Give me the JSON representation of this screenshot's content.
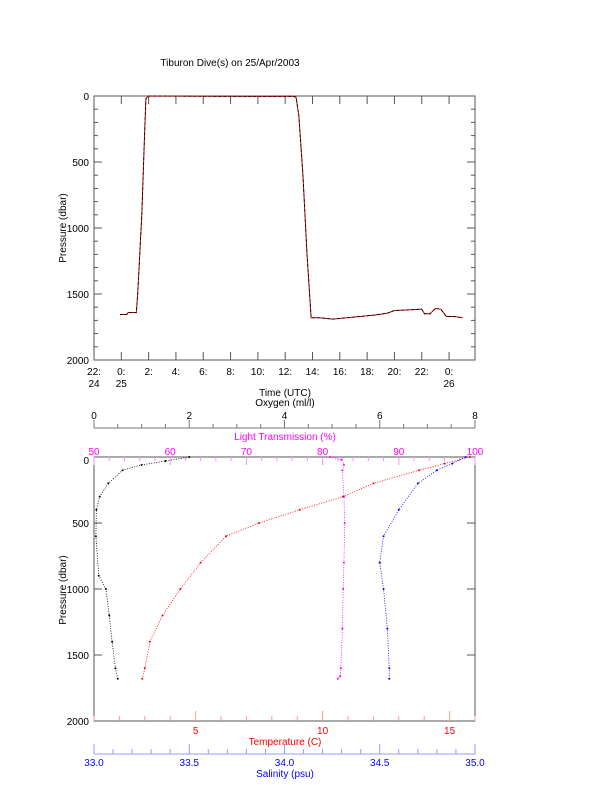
{
  "chart_data": [
    {
      "type": "line",
      "title": "Tiburon Dive(s) on 25/Apr/2003",
      "xlabel": "Time (UTC)",
      "ylabel": "Pressure (dbar)",
      "xlim": [
        -2,
        25.9
      ],
      "ylim": [
        2000,
        0
      ],
      "x_ticks": [
        {
          "v": -2,
          "l1": "22:",
          "l2": "24"
        },
        {
          "v": 0,
          "l1": "0:",
          "l2": "25"
        },
        {
          "v": 2,
          "l1": "2:",
          "l2": ""
        },
        {
          "v": 4,
          "l1": "4:",
          "l2": ""
        },
        {
          "v": 6,
          "l1": "6:",
          "l2": ""
        },
        {
          "v": 8,
          "l1": "8:",
          "l2": ""
        },
        {
          "v": 10,
          "l1": "10:",
          "l2": ""
        },
        {
          "v": 12,
          "l1": "12:",
          "l2": ""
        },
        {
          "v": 14,
          "l1": "14:",
          "l2": ""
        },
        {
          "v": 16,
          "l1": "16:",
          "l2": ""
        },
        {
          "v": 18,
          "l1": "18:",
          "l2": ""
        },
        {
          "v": 20,
          "l1": "20:",
          "l2": ""
        },
        {
          "v": 22,
          "l1": "22:",
          "l2": ""
        },
        {
          "v": 24,
          "l1": "0:",
          "l2": "26"
        }
      ],
      "y_ticks": [
        "0",
        "500",
        "1000",
        "1500",
        "2000"
      ],
      "series": [
        {
          "name": "dive",
          "color": "#000000",
          "x": [
            -0.1,
            0.4,
            0.5,
            1.1,
            1.2,
            1.5,
            1.7,
            1.8,
            2.0,
            6,
            10,
            12.6,
            12.8,
            13.0,
            13.3,
            13.6,
            13.9,
            14.5,
            15.5,
            16.5,
            17.5,
            18.5,
            19.5,
            20,
            21,
            22,
            22.2,
            22.6,
            23,
            23.4,
            23.8,
            24.3,
            25
          ],
          "y": [
            1655,
            1655,
            1640,
            1640,
            1500,
            900,
            300,
            20,
            0,
            2,
            3,
            2,
            10,
            150,
            600,
            1200,
            1680,
            1680,
            1690,
            1680,
            1670,
            1660,
            1645,
            1625,
            1620,
            1615,
            1650,
            1650,
            1610,
            1615,
            1670,
            1670,
            1680
          ]
        }
      ]
    },
    {
      "type": "scatter",
      "ylabel": "Pressure (dbar)",
      "ylim": [
        2000,
        0
      ],
      "y_ticks": [
        "0",
        "500",
        "1000",
        "1500",
        "2000"
      ],
      "axes": [
        {
          "key": "oxygen",
          "label": "Oxygen (ml/l)",
          "color": "#000000",
          "range": [
            0,
            8
          ],
          "ticks": [
            "0",
            "2",
            "4",
            "6",
            "8"
          ],
          "position": "top"
        },
        {
          "key": "light",
          "label": "Light Transmission (%)",
          "color": "#ff00ff",
          "range": [
            50,
            100
          ],
          "ticks": [
            "50",
            "60",
            "70",
            "80",
            "90",
            "100"
          ],
          "position": "top-inner"
        },
        {
          "key": "temp",
          "label": "Temperature (C)",
          "color": "#ff0000",
          "range": [
            1,
            16
          ],
          "ticks": [
            "5",
            "10",
            "15"
          ],
          "tickvals": [
            5,
            10,
            15
          ],
          "position": "bottom"
        },
        {
          "key": "sal",
          "label": "Salinity (psu)",
          "color": "#0000ff",
          "range": [
            33,
            35
          ],
          "ticks": [
            "33.0",
            "33.5",
            "34.0",
            "34.5",
            "35.0"
          ],
          "position": "bottom-outer"
        }
      ],
      "series": [
        {
          "name": "Oxygen",
          "axis": "oxygen",
          "color": "#000000",
          "p": [
            0,
            30,
            60,
            100,
            200,
            300,
            400,
            600,
            900,
            1000,
            1200,
            1400,
            1600,
            1680
          ],
          "v": [
            2.0,
            1.5,
            1.0,
            0.6,
            0.3,
            0.12,
            0.05,
            0.04,
            0.1,
            0.25,
            0.32,
            0.38,
            0.45,
            0.5
          ]
        },
        {
          "name": "Light Transmission",
          "axis": "light",
          "color": "#ff00ff",
          "p": [
            0,
            20,
            60,
            100,
            300,
            500,
            800,
            1000,
            1300,
            1600,
            1660,
            1680
          ],
          "v": [
            81,
            82.5,
            82.8,
            82.6,
            82.8,
            82.9,
            82.8,
            82.7,
            82.6,
            82.4,
            82.3,
            82
          ]
        },
        {
          "name": "Temperature",
          "axis": "temp",
          "color": "#ff0000",
          "p": [
            0,
            50,
            100,
            200,
            300,
            400,
            500,
            600,
            800,
            1000,
            1200,
            1400,
            1600,
            1680
          ],
          "v": [
            15.8,
            14.8,
            13.8,
            12.0,
            10.8,
            9.1,
            7.5,
            6.2,
            5.2,
            4.4,
            3.7,
            3.2,
            3.0,
            2.9
          ]
        },
        {
          "name": "Salinity",
          "axis": "sal",
          "color": "#0000ff",
          "p": [
            0,
            50,
            100,
            200,
            400,
            600,
            800,
            1000,
            1300,
            1600,
            1680
          ],
          "v": [
            34.95,
            34.88,
            34.8,
            34.7,
            34.6,
            34.52,
            34.5,
            34.52,
            34.54,
            34.55,
            34.55
          ]
        }
      ]
    }
  ]
}
